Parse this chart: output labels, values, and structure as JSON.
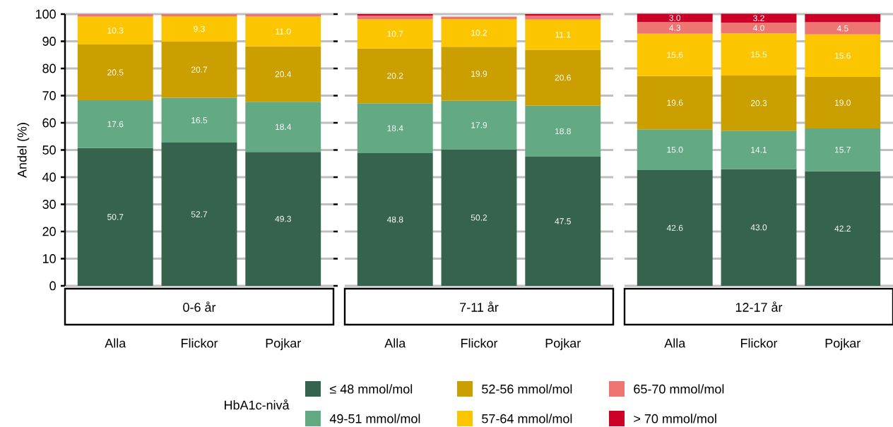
{
  "chart_data": [
    {
      "type": "bar",
      "stacked": true,
      "title": "0-6 år",
      "ylabel": "Andel (%)",
      "legend": "bottom",
      "legend_title": "HbA1c-nivå",
      "grid": "y",
      "categories": [
        "Alla",
        "Flickor",
        "Pojkar"
      ],
      "ylim": [
        0,
        100
      ],
      "yticks": [
        0,
        10,
        20,
        30,
        40,
        50,
        60,
        70,
        80,
        90,
        100
      ],
      "series": [
        {
          "name": "≤ 48 mmol/mol",
          "color": "#36634d",
          "values": [
            50.7,
            52.7,
            49.3
          ],
          "value_labels": [
            "50.7",
            "52.7",
            "49.3"
          ]
        },
        {
          "name": "49-51 mmol/mol",
          "color": "#63aa84",
          "values": [
            17.6,
            16.5,
            18.4
          ],
          "value_labels": [
            "17.6",
            "16.5",
            "18.4"
          ]
        },
        {
          "name": "52-56 mmol/mol",
          "color": "#cc9f00",
          "values": [
            20.5,
            20.7,
            20.4
          ],
          "value_labels": [
            "20.5",
            "20.7",
            "20.4"
          ]
        },
        {
          "name": "57-64 mmol/mol",
          "color": "#fbc600",
          "values": [
            10.3,
            9.3,
            11.0
          ],
          "value_labels": [
            "10.3",
            "9.3",
            "11.0"
          ]
        },
        {
          "name": "65-70 mmol/mol",
          "color": "#ee7672",
          "values": [
            0.9,
            0.8,
            0.9
          ],
          "value_labels": [
            null,
            null,
            null
          ]
        },
        {
          "name": "> 70 mmol/mol",
          "color": "#cc0026",
          "values": [
            0,
            0,
            0
          ],
          "value_labels": [
            null,
            null,
            null
          ]
        }
      ]
    },
    {
      "type": "bar",
      "stacked": true,
      "title": "7-11 år",
      "grid": "y",
      "tick_labels": "x",
      "categories": [
        "Alla",
        "Flickor",
        "Pojkar"
      ],
      "ylim": [
        0,
        100
      ],
      "yticks": [
        0,
        10,
        20,
        30,
        40,
        50,
        60,
        70,
        80,
        90,
        100
      ],
      "series": [
        {
          "color": "#36634d",
          "values": [
            48.8,
            50.2,
            47.5
          ],
          "value_labels": [
            "48.8",
            "50.2",
            "47.5"
          ]
        },
        {
          "color": "#63aa84",
          "values": [
            18.4,
            17.9,
            18.8
          ],
          "value_labels": [
            "18.4",
            "17.9",
            "18.8"
          ]
        },
        {
          "color": "#cc9f00",
          "values": [
            20.2,
            19.9,
            20.6
          ],
          "value_labels": [
            "20.2",
            "19.9",
            "20.6"
          ]
        },
        {
          "color": "#fbc600",
          "values": [
            10.7,
            10.2,
            11.1
          ],
          "value_labels": [
            "10.7",
            "10.2",
            "11.1"
          ]
        },
        {
          "color": "#ee7672",
          "values": [
            1.3,
            0.9,
            1.4
          ],
          "value_labels": [
            null,
            null,
            null
          ]
        },
        {
          "color": "#cc0026",
          "values": [
            0.6,
            0,
            0.6
          ],
          "value_labels": [
            null,
            null,
            null
          ]
        }
      ]
    },
    {
      "type": "bar",
      "stacked": true,
      "title": "12-17 år",
      "grid": "y",
      "tick_labels": "x",
      "categories": [
        "Alla",
        "Flickor",
        "Pojkar"
      ],
      "ylim": [
        0,
        100
      ],
      "yticks": [
        0,
        10,
        20,
        30,
        40,
        50,
        60,
        70,
        80,
        90,
        100
      ],
      "series": [
        {
          "color": "#36634d",
          "values": [
            42.6,
            43.0,
            42.2
          ],
          "value_labels": [
            "42.6",
            "43.0",
            "42.2"
          ]
        },
        {
          "color": "#63aa84",
          "values": [
            15.0,
            14.1,
            15.7
          ],
          "value_labels": [
            "15.0",
            "14.1",
            "15.7"
          ]
        },
        {
          "color": "#cc9f00",
          "values": [
            19.6,
            20.3,
            19.0
          ],
          "value_labels": [
            "19.6",
            "20.3",
            "19.0"
          ]
        },
        {
          "color": "#fbc600",
          "values": [
            15.6,
            15.5,
            15.6
          ],
          "value_labels": [
            "15.6",
            "15.5",
            "15.6"
          ]
        },
        {
          "color": "#ee7672",
          "values": [
            4.3,
            4.0,
            4.5
          ],
          "value_labels": [
            "4.3",
            "4.0",
            "4.5"
          ]
        },
        {
          "color": "#cc0026",
          "values": [
            3.0,
            3.2,
            3.0
          ],
          "value_labels": [
            "3.0",
            "3.2",
            null
          ]
        }
      ]
    }
  ]
}
